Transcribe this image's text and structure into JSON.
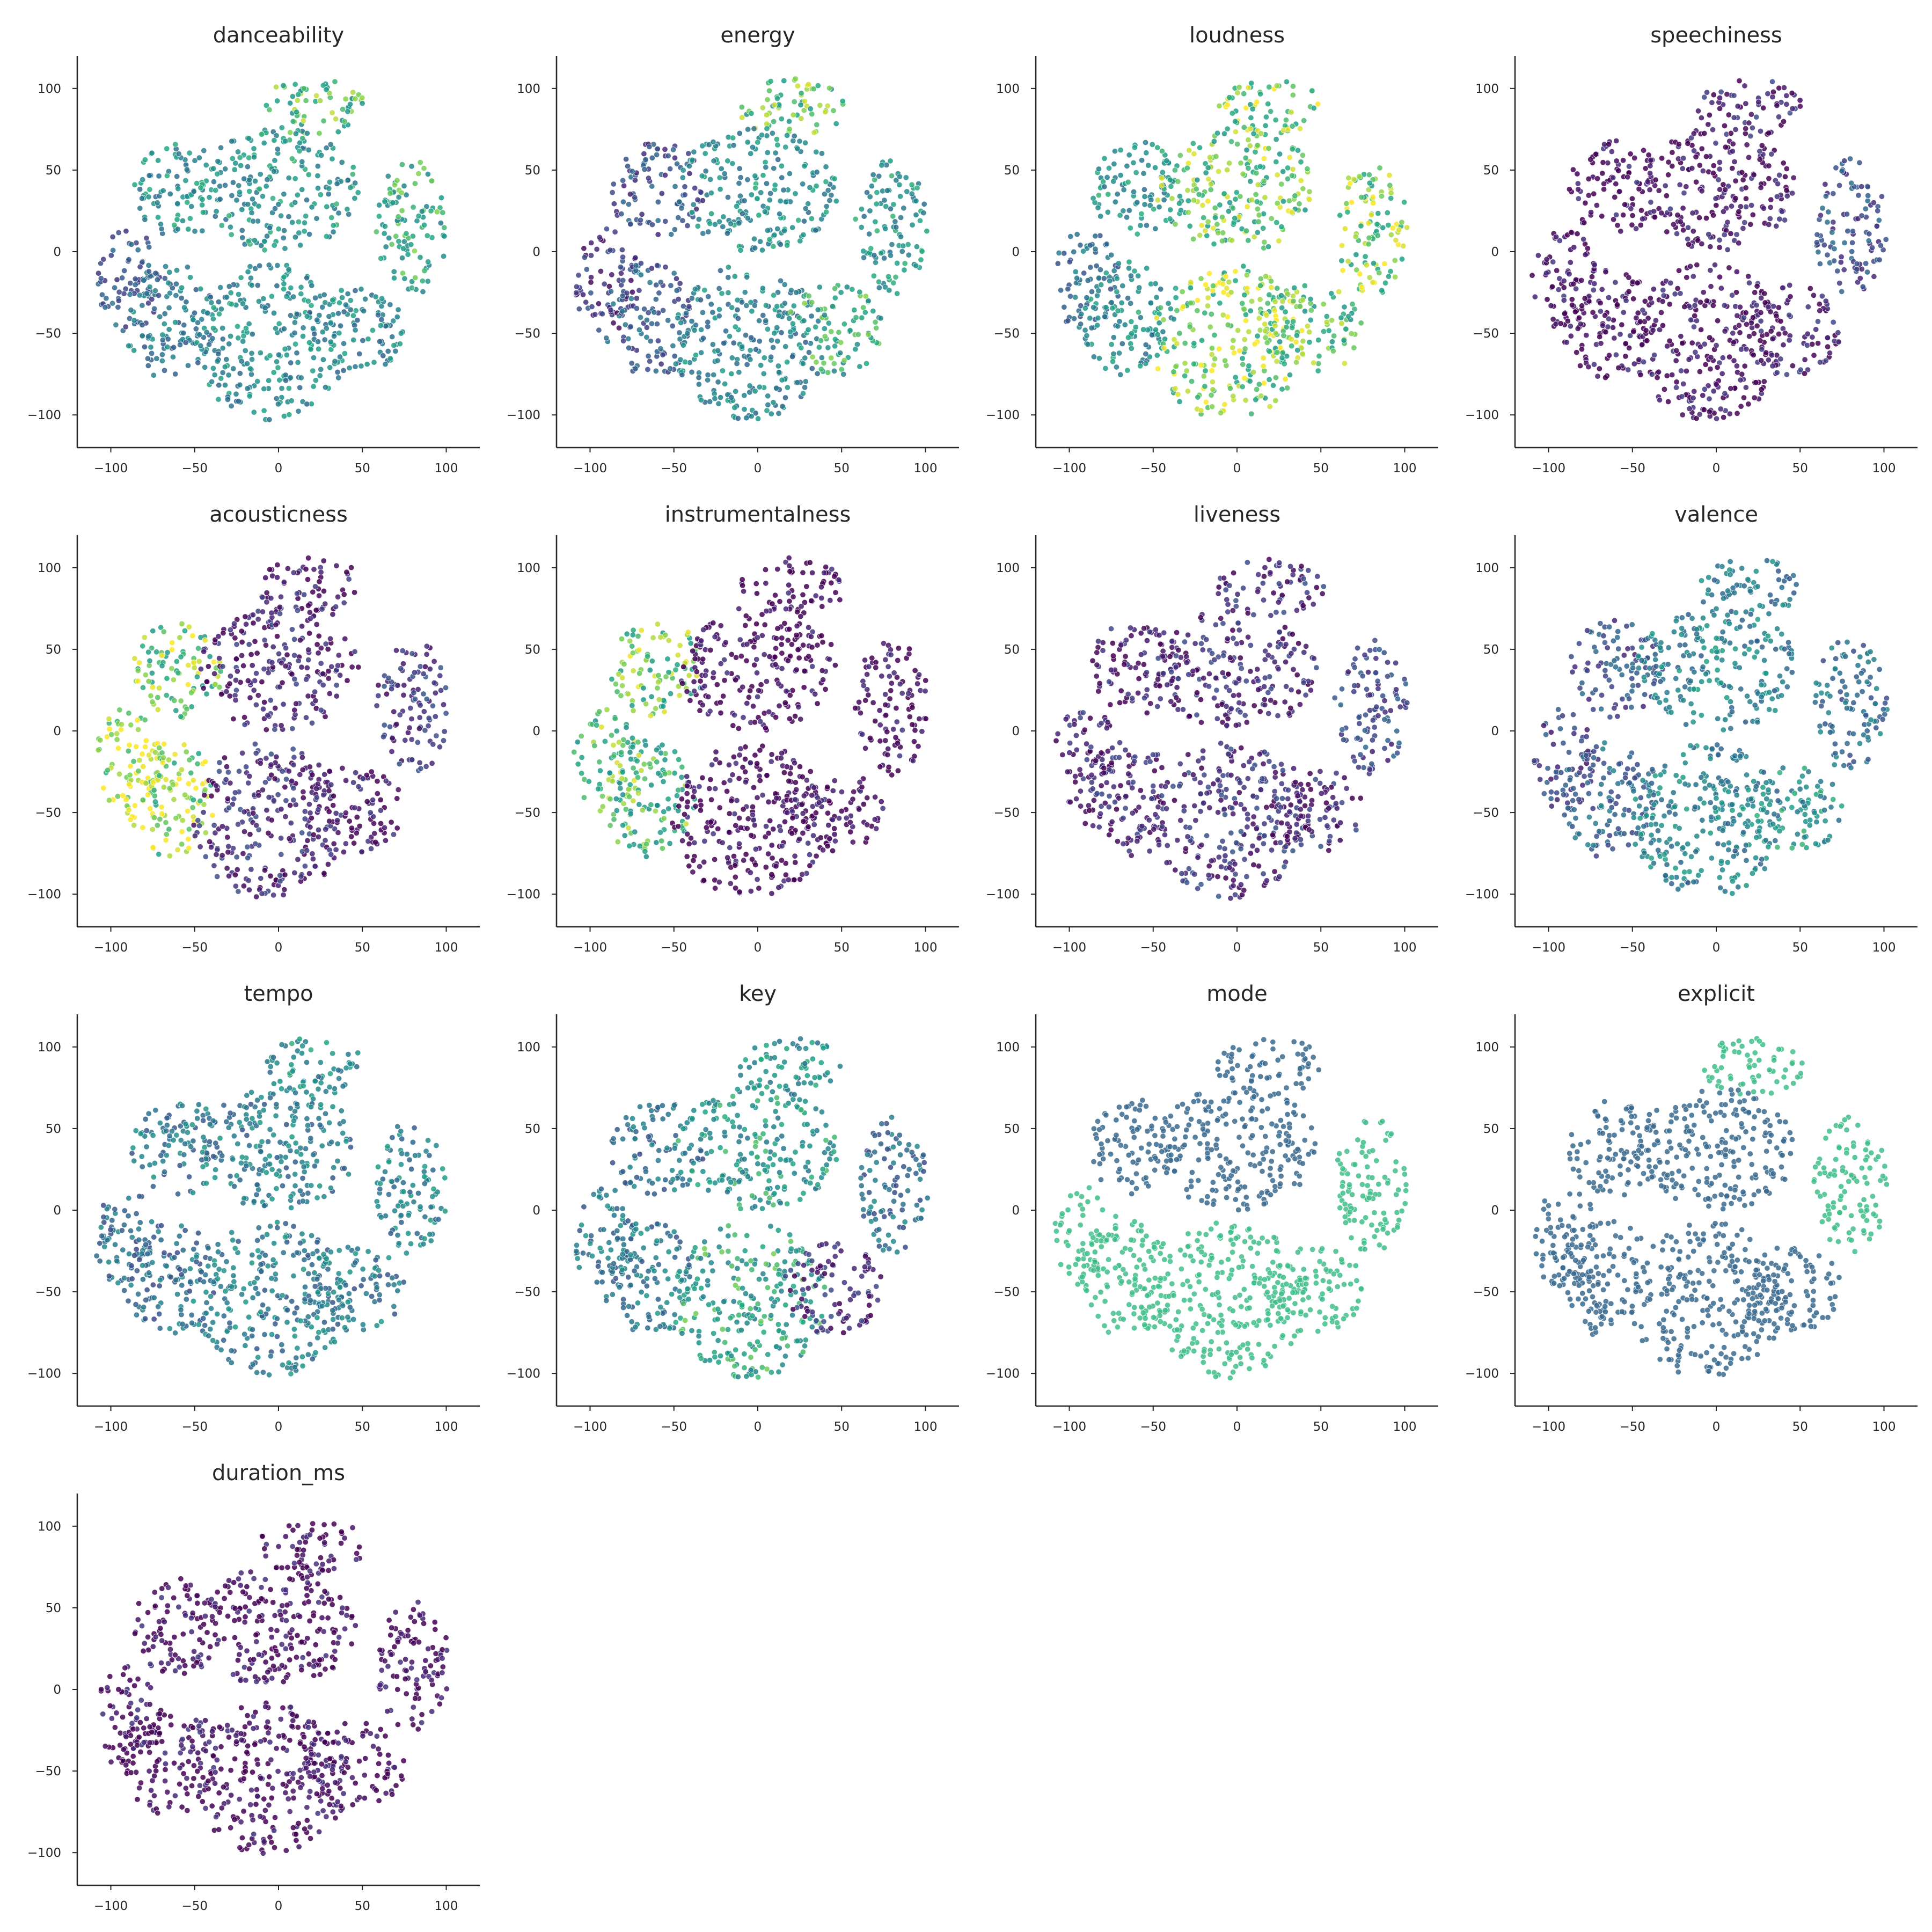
{
  "figure": {
    "layout": "4x4 grid, 13 panels"
  },
  "chart_data": [
    {
      "type": "scatter",
      "title": "danceability",
      "colormap": "viridis",
      "color_low": "#440154",
      "color_high": "#fde725",
      "xlim": [
        -120,
        120
      ],
      "ylim": [
        -120,
        120
      ],
      "xticks": [
        "−100",
        "−50",
        "0",
        "50",
        "100"
      ],
      "xtick_values": [
        -100,
        -50,
        0,
        50,
        100
      ],
      "yticks": [
        "100",
        "50",
        "0",
        "−50",
        "−100"
      ],
      "ytick_values": [
        100,
        50,
        0,
        -50,
        -100
      ],
      "color_by_region": {
        "top_cluster": 0.78,
        "upper_left": 0.6,
        "upper_center": 0.62,
        "right_cluster": 0.72,
        "lower_left": 0.5,
        "lower_center": 0.58,
        "lower_right": 0.55,
        "far_left": 0.35
      }
    },
    {
      "type": "scatter",
      "title": "energy",
      "colormap": "viridis",
      "color_low": "#440154",
      "color_high": "#fde725",
      "xlim": [
        -120,
        120
      ],
      "ylim": [
        -120,
        120
      ],
      "xticks": [
        "−100",
        "−50",
        "0",
        "50",
        "100"
      ],
      "xtick_values": [
        -100,
        -50,
        0,
        50,
        100
      ],
      "yticks": [
        "100",
        "50",
        "0",
        "−50",
        "−100"
      ],
      "ytick_values": [
        100,
        50,
        0,
        -50,
        -100
      ],
      "color_by_region": {
        "top_cluster": 0.8,
        "upper_left": 0.3,
        "upper_center": 0.6,
        "right_cluster": 0.62,
        "lower_left": 0.35,
        "lower_center": 0.55,
        "lower_right": 0.72,
        "far_left": 0.2
      }
    },
    {
      "type": "scatter",
      "title": "loudness",
      "colormap": "viridis",
      "color_low": "#440154",
      "color_high": "#fde725",
      "xlim": [
        -120,
        120
      ],
      "ylim": [
        -120,
        120
      ],
      "xticks": [
        "−100",
        "−50",
        "0",
        "50",
        "100"
      ],
      "xtick_values": [
        -100,
        -50,
        0,
        50,
        100
      ],
      "yticks": [
        "100",
        "50",
        "0",
        "−50",
        "−100"
      ],
      "ytick_values": [
        100,
        50,
        0,
        -50,
        -100
      ],
      "color_by_region": {
        "top_cluster": 0.85,
        "upper_left": 0.62,
        "upper_center": 0.82,
        "right_cluster": 0.85,
        "lower_left": 0.6,
        "lower_center": 0.86,
        "lower_right": 0.82,
        "far_left": 0.45
      }
    },
    {
      "type": "scatter",
      "title": "speechiness",
      "colormap": "viridis",
      "color_low": "#440154",
      "color_high": "#fde725",
      "xlim": [
        -120,
        120
      ],
      "ylim": [
        -120,
        120
      ],
      "xticks": [
        "−100",
        "−50",
        "0",
        "50",
        "100"
      ],
      "xtick_values": [
        -100,
        -50,
        0,
        50,
        100
      ],
      "yticks": [
        "100",
        "50",
        "0",
        "−50",
        "−100"
      ],
      "ytick_values": [
        100,
        50,
        0,
        -50,
        -100
      ],
      "color_by_region": {
        "top_cluster": 0.12,
        "upper_left": 0.04,
        "upper_center": 0.06,
        "right_cluster": 0.3,
        "lower_left": 0.04,
        "lower_center": 0.05,
        "lower_right": 0.1,
        "far_left": 0.04
      }
    },
    {
      "type": "scatter",
      "title": "acousticness",
      "colormap": "viridis",
      "color_low": "#440154",
      "color_high": "#fde725",
      "xlim": [
        -120,
        120
      ],
      "ylim": [
        -120,
        120
      ],
      "xticks": [
        "−100",
        "−50",
        "0",
        "50",
        "100"
      ],
      "xtick_values": [
        -100,
        -50,
        0,
        50,
        100
      ],
      "yticks": [
        "100",
        "50",
        "0",
        "−50",
        "−100"
      ],
      "ytick_values": [
        100,
        50,
        0,
        -50,
        -100
      ],
      "color_by_region": {
        "top_cluster": 0.08,
        "upper_left": 0.85,
        "upper_center": 0.1,
        "right_cluster": 0.2,
        "lower_left": 0.9,
        "lower_center": 0.15,
        "lower_right": 0.08,
        "far_left": 0.92
      }
    },
    {
      "type": "scatter",
      "title": "instrumentalness",
      "colormap": "viridis",
      "color_low": "#440154",
      "color_high": "#fde725",
      "xlim": [
        -120,
        120
      ],
      "ylim": [
        -120,
        120
      ],
      "xticks": [
        "−100",
        "−50",
        "0",
        "50",
        "100"
      ],
      "xtick_values": [
        -100,
        -50,
        0,
        50,
        100
      ],
      "yticks": [
        "100",
        "50",
        "0",
        "−50",
        "−100"
      ],
      "ytick_values": [
        100,
        50,
        0,
        -50,
        -100
      ],
      "color_by_region": {
        "top_cluster": 0.03,
        "upper_left": 0.82,
        "upper_center": 0.03,
        "right_cluster": 0.03,
        "lower_left": 0.78,
        "lower_center": 0.03,
        "lower_right": 0.03,
        "far_left": 0.8
      }
    },
    {
      "type": "scatter",
      "title": "liveness",
      "colormap": "viridis",
      "color_low": "#440154",
      "color_high": "#fde725",
      "xlim": [
        -120,
        120
      ],
      "ylim": [
        -120,
        120
      ],
      "xticks": [
        "−100",
        "−50",
        "0",
        "50",
        "100"
      ],
      "xtick_values": [
        -100,
        -50,
        0,
        50,
        100
      ],
      "yticks": [
        "100",
        "50",
        "0",
        "−50",
        "−100"
      ],
      "ytick_values": [
        100,
        50,
        0,
        -50,
        -100
      ],
      "color_by_region": {
        "top_cluster": 0.15,
        "upper_left": 0.1,
        "upper_center": 0.14,
        "right_cluster": 0.28,
        "lower_left": 0.12,
        "lower_center": 0.18,
        "lower_right": 0.14,
        "far_left": 0.12
      }
    },
    {
      "type": "scatter",
      "title": "valence",
      "colormap": "viridis",
      "color_low": "#440154",
      "color_high": "#fde725",
      "xlim": [
        -120,
        120
      ],
      "ylim": [
        -120,
        120
      ],
      "xticks": [
        "−100",
        "−50",
        "0",
        "50",
        "100"
      ],
      "xtick_values": [
        -100,
        -50,
        0,
        50,
        100
      ],
      "yticks": [
        "100",
        "50",
        "0",
        "−50",
        "−100"
      ],
      "ytick_values": [
        100,
        50,
        0,
        -50,
        -100
      ],
      "color_by_region": {
        "top_cluster": 0.5,
        "upper_left": 0.3,
        "upper_center": 0.55,
        "right_cluster": 0.45,
        "lower_left": 0.4,
        "lower_center": 0.55,
        "lower_right": 0.62,
        "far_left": 0.25
      }
    },
    {
      "type": "scatter",
      "title": "tempo",
      "colormap": "viridis",
      "color_low": "#440154",
      "color_high": "#fde725",
      "xlim": [
        -120,
        120
      ],
      "ylim": [
        -120,
        120
      ],
      "xticks": [
        "−100",
        "−50",
        "0",
        "50",
        "100"
      ],
      "xtick_values": [
        -100,
        -50,
        0,
        50,
        100
      ],
      "yticks": [
        "100",
        "50",
        "0",
        "−50",
        "−100"
      ],
      "ytick_values": [
        100,
        50,
        0,
        -50,
        -100
      ],
      "color_by_region": {
        "top_cluster": 0.6,
        "upper_left": 0.5,
        "upper_center": 0.52,
        "right_cluster": 0.55,
        "lower_left": 0.45,
        "lower_center": 0.52,
        "lower_right": 0.5,
        "far_left": 0.45
      }
    },
    {
      "type": "scatter",
      "title": "key",
      "colormap": "viridis",
      "color_low": "#440154",
      "color_high": "#fde725",
      "xlim": [
        -120,
        120
      ],
      "ylim": [
        -120,
        120
      ],
      "xticks": [
        "−100",
        "−50",
        "0",
        "50",
        "100"
      ],
      "xtick_values": [
        -100,
        -50,
        0,
        50,
        100
      ],
      "yticks": [
        "100",
        "50",
        "0",
        "−50",
        "−100"
      ],
      "ytick_values": [
        100,
        50,
        0,
        -50,
        -100
      ],
      "color_by_region": {
        "top_cluster": 0.6,
        "upper_left": 0.45,
        "upper_center": 0.65,
        "right_cluster": 0.45,
        "lower_left": 0.5,
        "lower_center": 0.7,
        "lower_right": 0.15,
        "far_left": 0.5
      }
    },
    {
      "type": "scatter",
      "title": "mode",
      "colormap": "viridis",
      "color_low": "#440154",
      "color_high": "#fde725",
      "xlim": [
        -120,
        120
      ],
      "ylim": [
        -120,
        120
      ],
      "xticks": [
        "−100",
        "−50",
        "0",
        "50",
        "100"
      ],
      "xtick_values": [
        -100,
        -50,
        0,
        50,
        100
      ],
      "yticks": [
        "100",
        "50",
        "0",
        "−50",
        "−100"
      ],
      "ytick_values": [
        100,
        50,
        0,
        -50,
        -100
      ],
      "categorical_colors": [
        "#3b6b8f",
        "#3fbe8a"
      ],
      "color_by_region": {
        "top_cluster": 0,
        "upper_left": 0,
        "upper_center": 0,
        "right_cluster": 1,
        "lower_left": 1,
        "lower_center": 1,
        "lower_right": 1,
        "far_left": 1
      }
    },
    {
      "type": "scatter",
      "title": "explicit",
      "colormap": "viridis",
      "color_low": "#440154",
      "color_high": "#fde725",
      "xlim": [
        -120,
        120
      ],
      "ylim": [
        -120,
        120
      ],
      "xticks": [
        "−100",
        "−50",
        "0",
        "50",
        "100"
      ],
      "xtick_values": [
        -100,
        -50,
        0,
        50,
        100
      ],
      "yticks": [
        "100",
        "50",
        "0",
        "−50",
        "−100"
      ],
      "ytick_values": [
        100,
        50,
        0,
        -50,
        -100
      ],
      "categorical_colors": [
        "#3b6b8f",
        "#3fbe8a"
      ],
      "color_by_region": {
        "top_cluster": 1,
        "upper_left": 0,
        "upper_center": 0,
        "right_cluster": 1,
        "lower_left": 0,
        "lower_center": 0,
        "lower_right": 0,
        "far_left": 0
      }
    },
    {
      "type": "scatter",
      "title": "duration_ms",
      "colormap": "viridis",
      "color_low": "#440154",
      "color_high": "#fde725",
      "xlim": [
        -120,
        120
      ],
      "ylim": [
        -120,
        120
      ],
      "xticks": [
        "−100",
        "−50",
        "0",
        "50",
        "100"
      ],
      "xtick_values": [
        -100,
        -50,
        0,
        50,
        100
      ],
      "yticks": [
        "100",
        "50",
        "0",
        "−50",
        "−100"
      ],
      "ytick_values": [
        100,
        50,
        0,
        -50,
        -100
      ],
      "color_by_region": {
        "top_cluster": 0.02,
        "upper_left": 0.03,
        "upper_center": 0.02,
        "right_cluster": 0.02,
        "lower_left": 0.04,
        "lower_center": 0.03,
        "lower_right": 0.03,
        "far_left": 0.04
      }
    }
  ]
}
